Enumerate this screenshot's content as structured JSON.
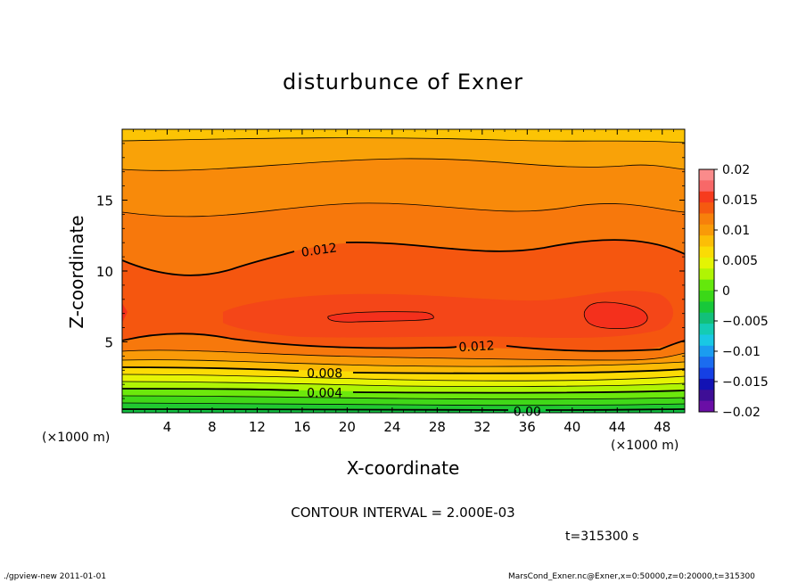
{
  "chart_data": {
    "type": "contour",
    "title": "disturbunce of Exner",
    "xlabel": "X-coordinate",
    "ylabel": "Z-coordinate",
    "x_unit_label": "(×1000 m)",
    "xlim": [
      0,
      50
    ],
    "ylim": [
      0,
      20
    ],
    "x_ticks": [
      4,
      8,
      12,
      16,
      20,
      24,
      28,
      32,
      36,
      40,
      44,
      48
    ],
    "y_ticks": [
      5,
      10,
      15
    ],
    "contour_interval_text": "CONTOUR INTERVAL = 2.000E-03",
    "time_text": "t=315300 s",
    "contour_labels": [
      {
        "text": "0.012",
        "x": 17.5,
        "y": 11.5
      },
      {
        "text": "0.012",
        "x": 31.5,
        "y": 4.7
      },
      {
        "text": "0.008",
        "x": 18,
        "y": 2.8
      },
      {
        "text": "0.004",
        "x": 18,
        "y": 1.4
      },
      {
        "text": "0.00",
        "x": 36,
        "y": 0.1
      }
    ],
    "colorbar": {
      "ticks": [
        "0.02",
        "0.015",
        "0.01",
        "0.005",
        "0",
        "−0.005",
        "−0.01",
        "−0.015",
        "−0.02"
      ],
      "colors": [
        "#fa8b8b",
        "#f86868",
        "#f63b1e",
        "#f55a10",
        "#f7800b",
        "#f99a08",
        "#fcbe06",
        "#fadc05",
        "#e4f404",
        "#b0f404",
        "#64e80c",
        "#3bd818",
        "#17c83a",
        "#12c07a",
        "#14ccb4",
        "#19c8e4",
        "#1b9cf0",
        "#1b6cf0",
        "#1540e4",
        "#1212b4",
        "#3e0e96",
        "#6a0ea6"
      ]
    },
    "bands_top_to_bottom": [
      {
        "level": "0.010-0.012",
        "color": "#fcbe06"
      },
      {
        "level": "0.012-0.014",
        "color": "#f99a08"
      },
      {
        "level": "0.014-0.016",
        "color": "#f7800b"
      },
      {
        "level": "0.016-0.018",
        "color": "#f55a10"
      },
      {
        "level": "0.018-0.020",
        "color": "#f63b1e"
      }
    ]
  },
  "footer": {
    "left": "./gpview-new   2011-01-01",
    "right": "MarsCond_Exner.nc@Exner,x=0:50000,z=0:20000,t=315300"
  }
}
